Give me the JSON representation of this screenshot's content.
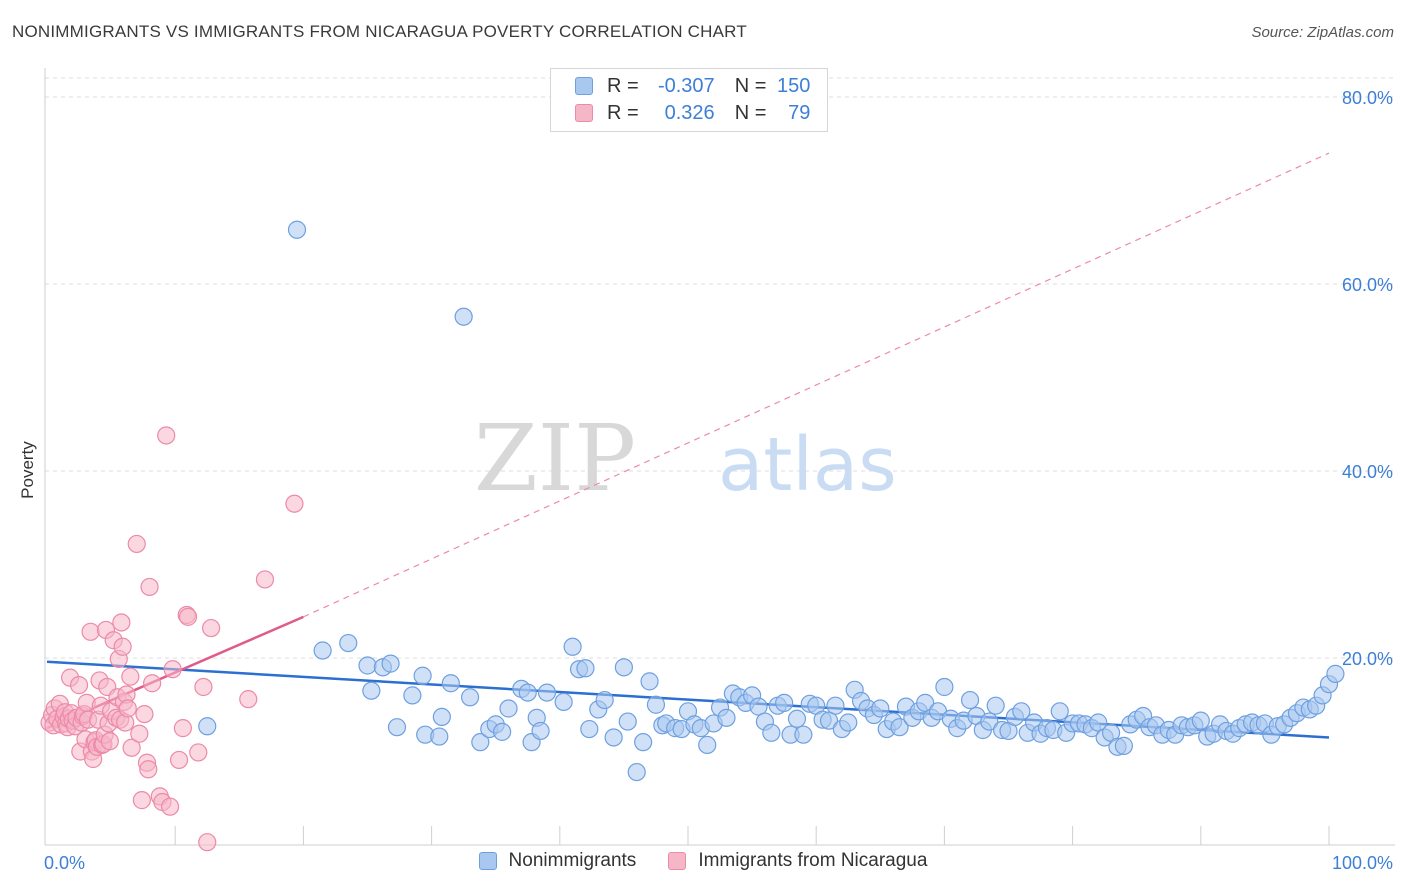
{
  "title": "NONIMMIGRANTS VS IMMIGRANTS FROM NICARAGUA POVERTY CORRELATION CHART",
  "source": "Source: ZipAtlas.com",
  "watermark": {
    "zip": "ZIP",
    "atlas": "atlas"
  },
  "legend": {
    "rows": [
      {
        "r_label": "R =",
        "r_value": "-0.307",
        "n_label": "N =",
        "n_value": "150",
        "color": "#a9c8f0"
      },
      {
        "r_label": "R =",
        "r_value": "0.326",
        "n_label": "N =",
        "n_value": "79",
        "color": "#f5b6c8"
      }
    ]
  },
  "bottom_legend": [
    "Nonimmigrants",
    "Immigrants from Nicaragua"
  ],
  "colors": {
    "blue_fill": "#a9c8f0",
    "blue_stroke": "#6ea0e0",
    "blue_line": "#2b6fd0",
    "pink_fill": "#f5b6c8",
    "pink_stroke": "#ec8aa8",
    "pink_line": "#e05c88",
    "tick_label": "#3d7fd6",
    "grid": "#dedede"
  },
  "chart_data": {
    "type": "scatter",
    "title": "NONIMMIGRANTS VS IMMIGRANTS FROM NICARAGUA POVERTY CORRELATION CHART",
    "xlabel": "",
    "ylabel": "Poverty",
    "xlim": [
      0,
      100
    ],
    "ylim": [
      0,
      80
    ],
    "x_tick_labels": [
      "0.0%",
      "100.0%"
    ],
    "y_ticks": [
      20,
      40,
      60,
      80
    ],
    "y_tick_labels": [
      "20.0%",
      "40.0%",
      "60.0%",
      "80.0%"
    ],
    "grid": true,
    "legend_position": "top-center",
    "series": [
      {
        "name": "Nonimmigrants",
        "r": -0.307,
        "n": 150,
        "trend": {
          "x": [
            0,
            100
          ],
          "y": [
            19.6,
            11.5
          ],
          "style": "solid"
        },
        "points": [
          [
            12.5,
            12.7
          ],
          [
            19.5,
            65.8
          ],
          [
            21.5,
            20.8
          ],
          [
            23.5,
            21.6
          ],
          [
            25,
            19.2
          ],
          [
            25.3,
            16.5
          ],
          [
            26.2,
            19
          ],
          [
            26.8,
            19.4
          ],
          [
            27.3,
            12.6
          ],
          [
            28.5,
            16
          ],
          [
            29.3,
            18.1
          ],
          [
            29.5,
            11.8
          ],
          [
            30.6,
            11.6
          ],
          [
            30.8,
            13.7
          ],
          [
            31.5,
            17.3
          ],
          [
            32.5,
            56.5
          ],
          [
            33,
            15.8
          ],
          [
            33.8,
            11
          ],
          [
            34.5,
            12.4
          ],
          [
            35,
            12.9
          ],
          [
            35.5,
            12.1
          ],
          [
            36,
            14.6
          ],
          [
            37,
            16.7
          ],
          [
            37.5,
            16.3
          ],
          [
            37.8,
            11
          ],
          [
            38.2,
            13.6
          ],
          [
            38.5,
            12.2
          ],
          [
            39,
            16.3
          ],
          [
            40.3,
            15.3
          ],
          [
            41,
            21.2
          ],
          [
            41.5,
            18.8
          ],
          [
            42,
            18.9
          ],
          [
            42.3,
            12.4
          ],
          [
            43,
            14.5
          ],
          [
            43.5,
            15.5
          ],
          [
            44.2,
            11.5
          ],
          [
            45,
            19
          ],
          [
            45.3,
            13.2
          ],
          [
            46,
            7.8
          ],
          [
            46.5,
            11
          ],
          [
            47,
            17.5
          ],
          [
            47.5,
            15
          ],
          [
            48,
            12.8
          ],
          [
            48.3,
            13
          ],
          [
            49,
            12.5
          ],
          [
            49.5,
            12.4
          ],
          [
            50,
            14.3
          ],
          [
            50.5,
            12.9
          ],
          [
            51,
            12.5
          ],
          [
            51.5,
            10.7
          ],
          [
            52,
            13
          ],
          [
            52.5,
            14.7
          ],
          [
            53,
            13.6
          ],
          [
            53.5,
            16.2
          ],
          [
            54,
            15.8
          ],
          [
            54.5,
            15.2
          ],
          [
            55,
            16
          ],
          [
            55.5,
            14.8
          ],
          [
            56,
            13.2
          ],
          [
            56.5,
            12
          ],
          [
            57,
            14.9
          ],
          [
            57.5,
            15.2
          ],
          [
            58,
            11.8
          ],
          [
            58.5,
            13.5
          ],
          [
            59,
            11.8
          ],
          [
            59.5,
            15.1
          ],
          [
            60,
            14.9
          ],
          [
            60.5,
            13.4
          ],
          [
            61,
            13.3
          ],
          [
            61.5,
            14.9
          ],
          [
            62,
            12.4
          ],
          [
            62.5,
            13.1
          ],
          [
            63,
            16.6
          ],
          [
            63.5,
            15.4
          ],
          [
            64,
            14.6
          ],
          [
            64.5,
            13.9
          ],
          [
            65,
            14.6
          ],
          [
            65.5,
            12.4
          ],
          [
            66,
            13.2
          ],
          [
            66.5,
            12.6
          ],
          [
            67,
            14.8
          ],
          [
            67.5,
            13.6
          ],
          [
            68,
            14.3
          ],
          [
            68.5,
            15.2
          ],
          [
            69,
            13.6
          ],
          [
            69.5,
            14.3
          ],
          [
            70,
            16.9
          ],
          [
            70.5,
            13.5
          ],
          [
            71,
            12.5
          ],
          [
            71.5,
            13.3
          ],
          [
            72,
            15.5
          ],
          [
            72.5,
            13.8
          ],
          [
            73,
            12.3
          ],
          [
            73.5,
            13.2
          ],
          [
            74,
            14.9
          ],
          [
            74.5,
            12.3
          ],
          [
            75,
            12.2
          ],
          [
            75.5,
            13.7
          ],
          [
            76,
            14.3
          ],
          [
            76.5,
            12
          ],
          [
            77,
            13.1
          ],
          [
            77.5,
            11.9
          ],
          [
            78,
            12.5
          ],
          [
            78.5,
            12.3
          ],
          [
            79,
            14.3
          ],
          [
            79.5,
            12
          ],
          [
            80,
            13
          ],
          [
            80.5,
            13
          ],
          [
            81,
            12.9
          ],
          [
            81.5,
            12.5
          ],
          [
            82,
            13.1
          ],
          [
            82.5,
            11.5
          ],
          [
            83,
            12
          ],
          [
            83.5,
            10.5
          ],
          [
            84,
            10.6
          ],
          [
            84.5,
            12.9
          ],
          [
            85,
            13.4
          ],
          [
            85.5,
            13.8
          ],
          [
            86,
            12.6
          ],
          [
            86.5,
            12.8
          ],
          [
            87,
            11.8
          ],
          [
            87.5,
            12.3
          ],
          [
            88,
            11.8
          ],
          [
            88.5,
            12.8
          ],
          [
            89,
            12.6
          ],
          [
            89.5,
            12.8
          ],
          [
            90,
            13.3
          ],
          [
            90.5,
            11.6
          ],
          [
            91,
            11.9
          ],
          [
            91.5,
            12.9
          ],
          [
            92,
            12.2
          ],
          [
            92.5,
            11.9
          ],
          [
            93,
            12.5
          ],
          [
            93.5,
            12.9
          ],
          [
            94,
            13.1
          ],
          [
            94.5,
            12.8
          ],
          [
            95,
            13
          ],
          [
            95.5,
            11.8
          ],
          [
            96,
            12.7
          ],
          [
            96.5,
            12.9
          ],
          [
            97,
            13.6
          ],
          [
            97.5,
            14.1
          ],
          [
            98,
            14.7
          ],
          [
            98.5,
            14.5
          ],
          [
            99,
            14.9
          ],
          [
            99.5,
            16
          ],
          [
            100,
            17.2
          ],
          [
            100.5,
            18.3
          ]
        ]
      },
      {
        "name": "Immigrants from Nicaragua",
        "r": 0.326,
        "n": 79,
        "trend_solid": {
          "x": [
            0,
            20
          ],
          "y": [
            12.5,
            24.4
          ]
        },
        "trend_dashed": {
          "x": [
            20,
            100
          ],
          "y": [
            24.4,
            74
          ]
        },
        "points": [
          [
            0.2,
            13.1
          ],
          [
            0.4,
            13.9
          ],
          [
            0.5,
            12.8
          ],
          [
            0.6,
            14.6
          ],
          [
            0.8,
            13.5
          ],
          [
            1,
            15.1
          ],
          [
            1.1,
            12.9
          ],
          [
            1.3,
            13.7
          ],
          [
            1.4,
            14.2
          ],
          [
            1.5,
            13
          ],
          [
            1.6,
            12.6
          ],
          [
            1.7,
            13.5
          ],
          [
            1.8,
            17.9
          ],
          [
            1.9,
            14.1
          ],
          [
            2,
            13.3
          ],
          [
            2.2,
            12.7
          ],
          [
            2.3,
            13.6
          ],
          [
            2.5,
            17.1
          ],
          [
            2.6,
            10
          ],
          [
            2.7,
            13.1
          ],
          [
            2.8,
            13.8
          ],
          [
            2.9,
            14
          ],
          [
            3,
            11.3
          ],
          [
            3.1,
            15.2
          ],
          [
            3.2,
            13.4
          ],
          [
            3.4,
            22.8
          ],
          [
            3.5,
            10
          ],
          [
            3.6,
            9.2
          ],
          [
            3.7,
            11
          ],
          [
            3.8,
            11.2
          ],
          [
            3.9,
            10.5
          ],
          [
            4,
            13.4
          ],
          [
            4.1,
            17.6
          ],
          [
            4.2,
            14.9
          ],
          [
            4.3,
            10.7
          ],
          [
            4.4,
            10.8
          ],
          [
            4.5,
            11.8
          ],
          [
            4.6,
            23
          ],
          [
            4.7,
            16.9
          ],
          [
            4.8,
            13
          ],
          [
            4.9,
            11.1
          ],
          [
            5,
            14.3
          ],
          [
            5.2,
            21.9
          ],
          [
            5.4,
            13.6
          ],
          [
            5.5,
            15.8
          ],
          [
            5.6,
            19.9
          ],
          [
            5.7,
            13.4
          ],
          [
            5.8,
            23.8
          ],
          [
            5.9,
            21.2
          ],
          [
            6,
            15.3
          ],
          [
            6.1,
            13.1
          ],
          [
            6.2,
            16.1
          ],
          [
            6.3,
            14.6
          ],
          [
            6.5,
            18
          ],
          [
            6.6,
            10.4
          ],
          [
            7,
            32.2
          ],
          [
            7.2,
            11.9
          ],
          [
            7.4,
            4.8
          ],
          [
            7.6,
            14
          ],
          [
            7.8,
            8.8
          ],
          [
            7.9,
            8.1
          ],
          [
            8,
            27.6
          ],
          [
            8.2,
            17.3
          ],
          [
            8.8,
            5.2
          ],
          [
            9,
            4.6
          ],
          [
            9.3,
            43.8
          ],
          [
            9.6,
            4.1
          ],
          [
            9.8,
            18.8
          ],
          [
            10.3,
            9.1
          ],
          [
            10.6,
            12.5
          ],
          [
            10.9,
            24.6
          ],
          [
            11,
            24.4
          ],
          [
            11.8,
            9.9
          ],
          [
            12.2,
            16.9
          ],
          [
            12.5,
            0.3
          ],
          [
            12.8,
            23.2
          ],
          [
            15.7,
            15.6
          ],
          [
            17,
            28.4
          ],
          [
            19.3,
            36.5
          ]
        ]
      }
    ]
  }
}
